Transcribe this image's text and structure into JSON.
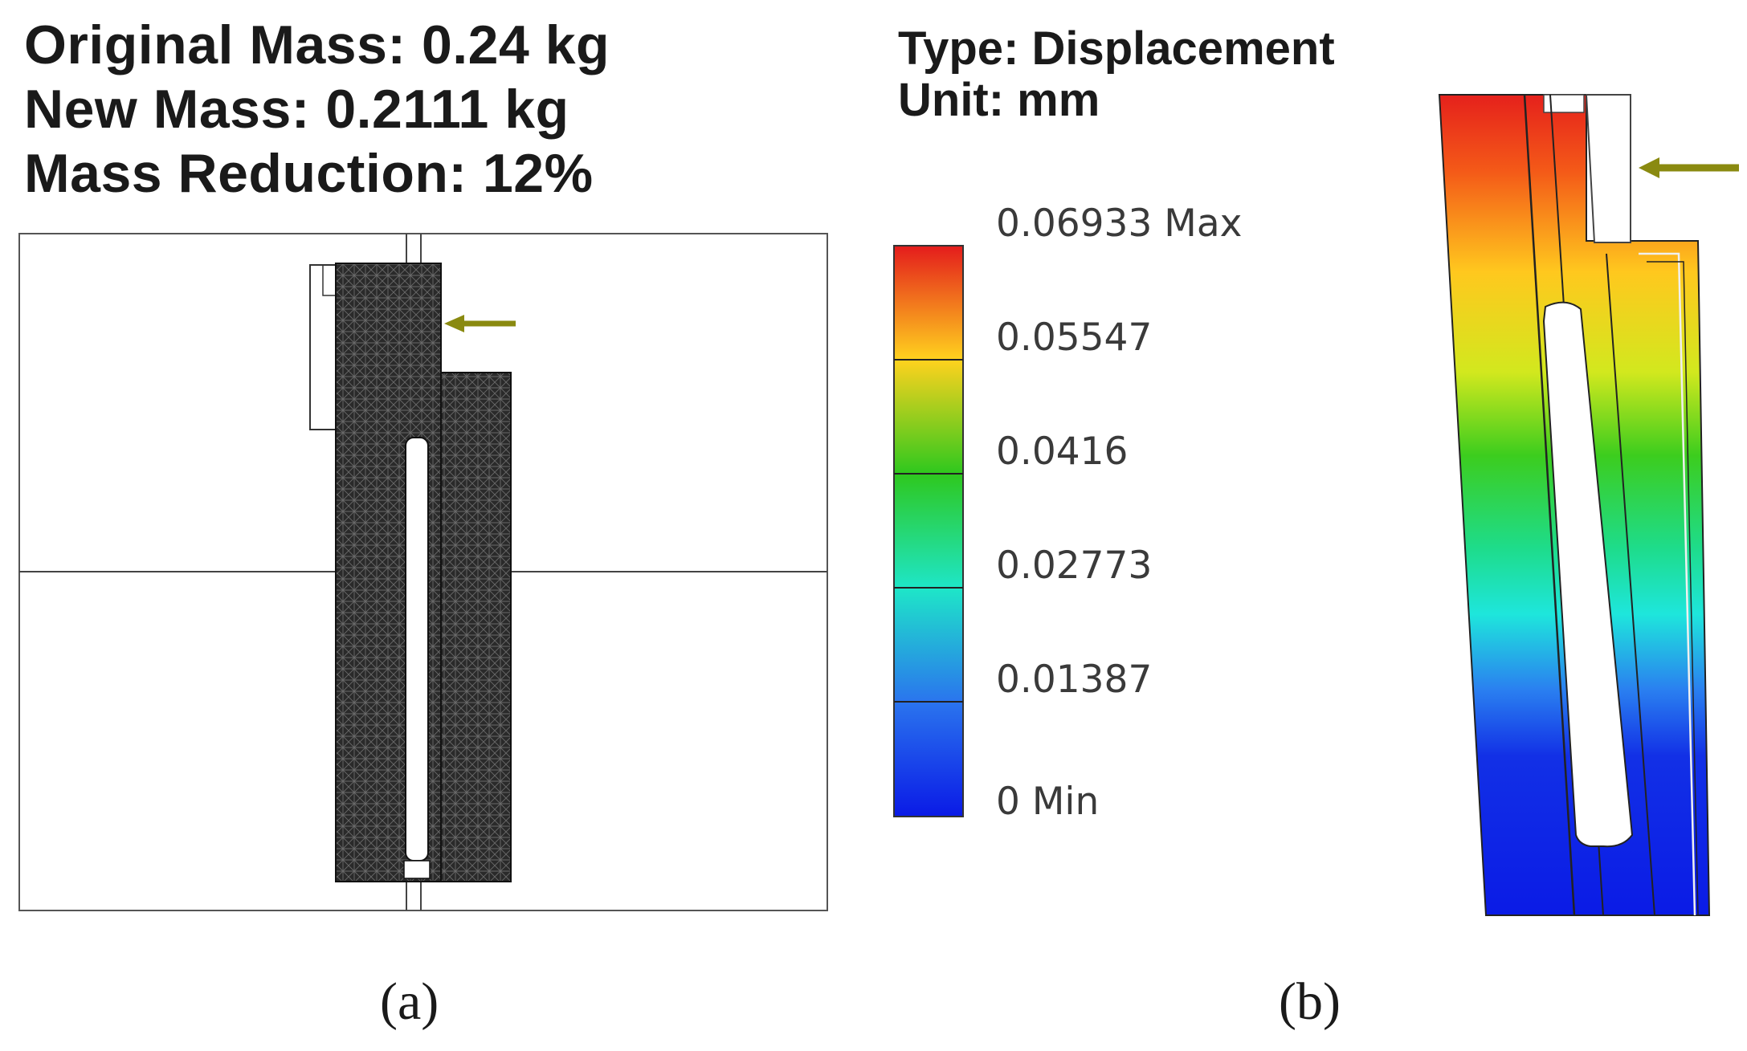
{
  "panel_a": {
    "original_mass": "Original Mass: 0.24 kg",
    "new_mass": "New Mass: 0.2111 kg",
    "mass_reduction": "Mass Reduction: 12%",
    "caption": "(a)"
  },
  "panel_b": {
    "type_label": "Type: Displacement",
    "unit_label": "Unit: mm",
    "caption": "(b)",
    "legend": {
      "ticks": [
        "0.06933 Max",
        "0.05547",
        "0.0416",
        "0.02773",
        "0.01387",
        "0 Min"
      ],
      "colors": [
        "#e41c1c",
        "#ffd21e",
        "#2ec81e",
        "#1ee6c8",
        "#2a74ee",
        "#0a1ae6"
      ]
    }
  },
  "colors": {
    "mesh": "#2c2c2c",
    "load_arrow": "#8a8a10",
    "text": "#1a1a1a"
  }
}
